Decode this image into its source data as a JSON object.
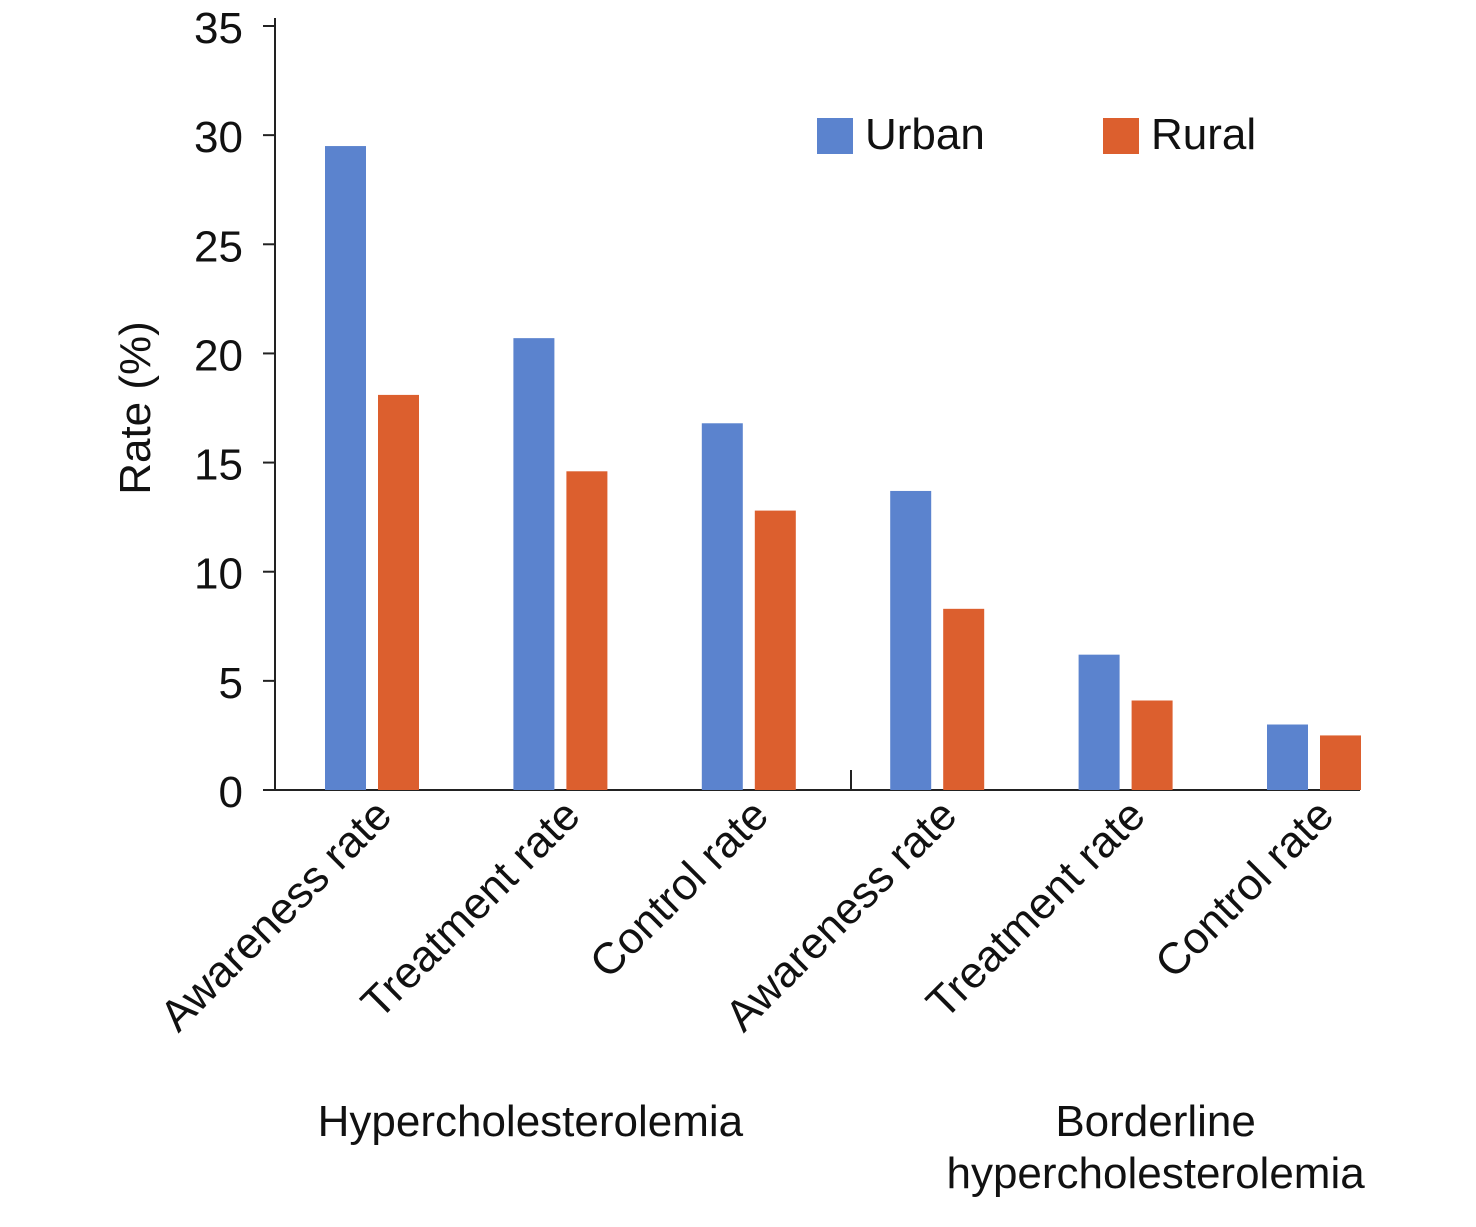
{
  "chart_data": {
    "type": "bar",
    "title": "",
    "xlabel": "",
    "ylabel": "Rate (%)",
    "ylim": [
      0,
      35
    ],
    "yticks": [
      0,
      5,
      10,
      15,
      20,
      25,
      30,
      35
    ],
    "grid": false,
    "legend_position": "top-right",
    "categories": [
      "Awareness rate",
      "Treatment rate",
      "Control rate",
      "Awareness rate",
      "Treatment rate",
      "Control rate"
    ],
    "groups": [
      {
        "label": "Hypercholesterolemia",
        "label_lines": [
          "Hypercholesterolemia"
        ],
        "category_indices": [
          0,
          1,
          2
        ]
      },
      {
        "label": "Borderline hypercholesterolemia",
        "label_lines": [
          "Borderline",
          "hypercholesterolemia"
        ],
        "category_indices": [
          3,
          4,
          5
        ]
      }
    ],
    "series": [
      {
        "name": "Urban",
        "color": "#5B83CE",
        "values": [
          29.5,
          20.7,
          16.8,
          13.7,
          6.2,
          3.0
        ]
      },
      {
        "name": "Rural",
        "color": "#DC5F2E",
        "values": [
          18.1,
          14.6,
          12.8,
          8.3,
          4.1,
          2.5
        ]
      }
    ]
  }
}
